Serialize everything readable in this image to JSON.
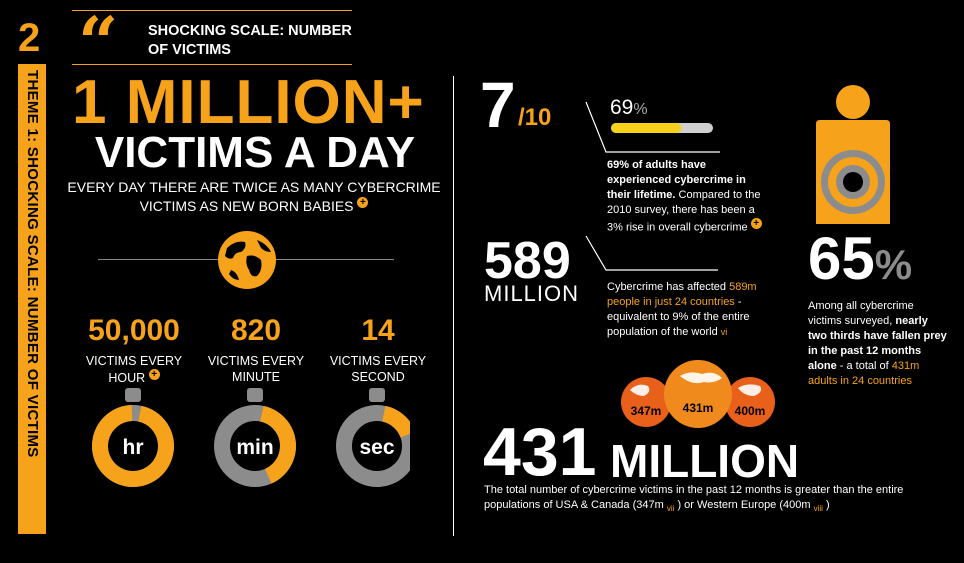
{
  "theme": {
    "number": "2",
    "vertical_label": "THEME 1: SHOCKING SCALE: NUMBER OF VICTIMS"
  },
  "header": {
    "title_line1": "SHOCKING SCALE: NUMBER",
    "title_line2": "OF VICTIMS"
  },
  "headline": {
    "big": "1 MILLION+",
    "sub": "VICTIMS A DAY",
    "desc_line1": "EVERY DAY THERE ARE TWICE AS MANY CYBERCRIME",
    "desc_line2": "VICTIMS AS NEW BORN BABIES"
  },
  "rates": [
    {
      "value": "50,000",
      "label1": "VICTIMS EVERY",
      "label2": "HOUR",
      "dial": "hr",
      "fraction": 0.96
    },
    {
      "value": "820",
      "label1": "VICTIMS EVERY",
      "label2": "MINUTE",
      "dial": "min",
      "fraction": 0.4
    },
    {
      "value": "14",
      "label1": "VICTIMS EVERY",
      "label2": "SECOND",
      "dial": "sec",
      "fraction": 0.16
    }
  ],
  "stat_7in10": {
    "num": "7",
    "den": "/10",
    "pct": "69",
    "pct_sign": "%",
    "progress": 0.69,
    "text_bold": "69% of adults have experienced cybercrime in their lifetime.",
    "text_rest": " Compared to the 2010 survey, there has been a 3% rise in overall cybercrime"
  },
  "stat_589": {
    "num": "589",
    "unit": "MILLION",
    "text_a": "Cybercrime has affected ",
    "text_orange": "589m people in just 24 countries",
    "text_b": " - equivalent to 9% of the entire population of the world ",
    "footnote": "vi"
  },
  "stat_65": {
    "num": "65",
    "sign": "%",
    "text_a": "Among all cybercrime victims surveyed, ",
    "text_bold": "nearly two thirds have fallen prey in the past 12 months alone",
    "text_b": " - a total of ",
    "text_orange": "431m adults in 24 countries"
  },
  "bubbles": [
    {
      "label": "347m"
    },
    {
      "label": "431m"
    },
    {
      "label": "400m"
    }
  ],
  "stat_431": {
    "num": "431",
    "unit": "MILLION",
    "text_a": "The total number of cybercrime victims in the past 12 months is greater than the entire populations of USA & Canada (347m ",
    "foot1": "vii",
    "text_b": " ) or Western Europe (400m ",
    "foot2": "viii",
    "text_c": " )"
  },
  "colors": {
    "accent": "#f7a21b",
    "grey": "#8c8c8c",
    "background": "#000000"
  }
}
